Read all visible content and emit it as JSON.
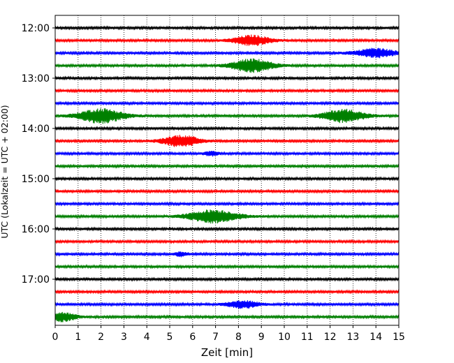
{
  "chart_data": {
    "type": "line",
    "title": "",
    "xlabel": "Zeit  [min]",
    "ylabel": "UTC (Lokalzeit = UTC + 02:00)",
    "xlim": [
      0,
      15
    ],
    "x_ticks": [
      "0",
      "1",
      "2",
      "3",
      "4",
      "5",
      "6",
      "7",
      "8",
      "9",
      "10",
      "11",
      "12",
      "13",
      "14",
      "15"
    ],
    "y_ticks": [
      "12:00",
      "13:00",
      "14:00",
      "15:00",
      "16:00",
      "17:00"
    ],
    "grid": {
      "x_dotted": true,
      "y": false
    },
    "trace_interval_min": 15,
    "colors": [
      "#000000",
      "#ff0000",
      "#0000ff",
      "#008000"
    ],
    "traces": [
      {
        "start": "12:00",
        "color": "#000000",
        "events": []
      },
      {
        "start": "12:15",
        "color": "#ff0000",
        "events": [
          {
            "t": 8.6,
            "amp": 7,
            "width": 0.8
          }
        ]
      },
      {
        "start": "12:30",
        "color": "#0000ff",
        "events": [
          {
            "t": 14.0,
            "amp": 6,
            "width": 0.9
          }
        ]
      },
      {
        "start": "12:45",
        "color": "#008000",
        "events": [
          {
            "t": 8.6,
            "amp": 9,
            "width": 0.9
          }
        ]
      },
      {
        "start": "13:00",
        "color": "#000000",
        "events": []
      },
      {
        "start": "13:15",
        "color": "#ff0000",
        "events": []
      },
      {
        "start": "13:30",
        "color": "#0000ff",
        "events": []
      },
      {
        "start": "13:45",
        "color": "#008000",
        "events": [
          {
            "t": 2.0,
            "amp": 10,
            "width": 1.0
          },
          {
            "t": 12.6,
            "amp": 9,
            "width": 0.9
          }
        ]
      },
      {
        "start": "14:00",
        "color": "#000000",
        "events": []
      },
      {
        "start": "14:15",
        "color": "#ff0000",
        "events": [
          {
            "t": 5.5,
            "amp": 8,
            "width": 0.8
          }
        ]
      },
      {
        "start": "14:30",
        "color": "#0000ff",
        "events": [
          {
            "t": 6.8,
            "amp": 3,
            "width": 0.3
          }
        ]
      },
      {
        "start": "14:45",
        "color": "#008000",
        "events": []
      },
      {
        "start": "15:00",
        "color": "#000000",
        "events": []
      },
      {
        "start": "15:15",
        "color": "#ff0000",
        "events": []
      },
      {
        "start": "15:30",
        "color": "#0000ff",
        "events": []
      },
      {
        "start": "15:45",
        "color": "#008000",
        "events": [
          {
            "t": 6.9,
            "amp": 9,
            "width": 1.1
          }
        ]
      },
      {
        "start": "16:00",
        "color": "#000000",
        "events": []
      },
      {
        "start": "16:15",
        "color": "#ff0000",
        "events": []
      },
      {
        "start": "16:30",
        "color": "#0000ff",
        "events": [
          {
            "t": 5.5,
            "amp": 3,
            "width": 0.3
          }
        ]
      },
      {
        "start": "16:45",
        "color": "#008000",
        "events": []
      },
      {
        "start": "17:00",
        "color": "#000000",
        "events": []
      },
      {
        "start": "17:15",
        "color": "#ff0000",
        "events": []
      },
      {
        "start": "17:30",
        "color": "#0000ff",
        "events": [
          {
            "t": 8.2,
            "amp": 5,
            "width": 0.7
          }
        ]
      },
      {
        "start": "17:45",
        "color": "#008000",
        "events": [
          {
            "t": 0.3,
            "amp": 6,
            "width": 0.6
          }
        ]
      }
    ]
  }
}
